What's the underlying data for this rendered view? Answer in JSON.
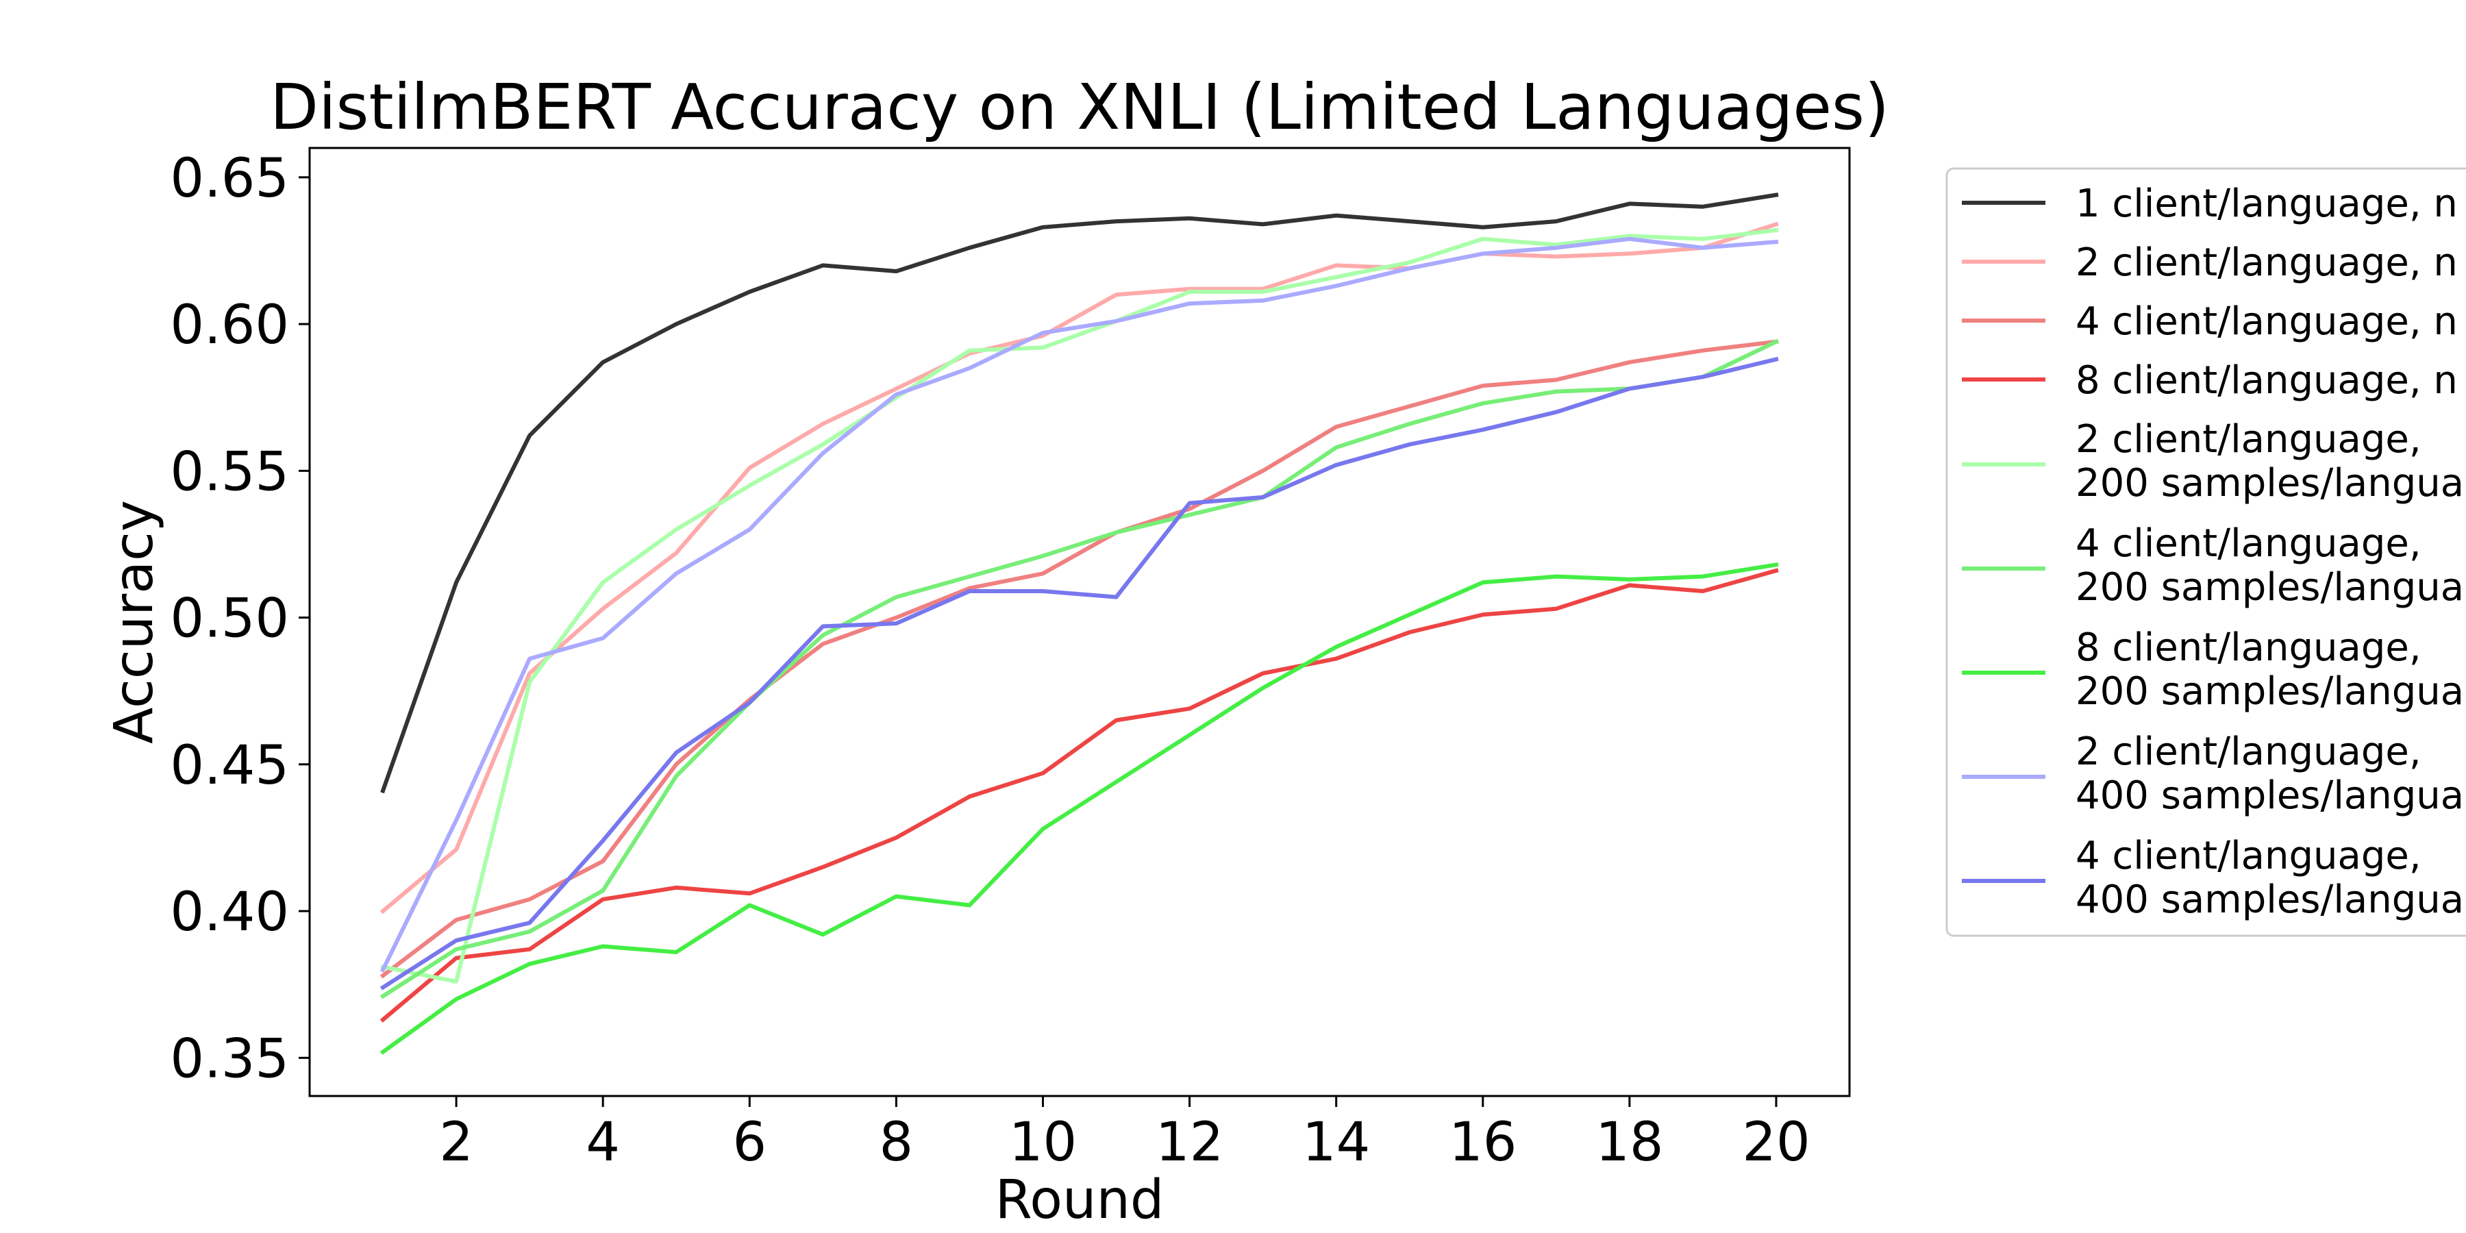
{
  "chart_data": {
    "type": "line",
    "title": "DistilmBERT Accuracy on XNLI (Limited Languages)",
    "xlabel": "Round",
    "ylabel": "Accuracy",
    "xlim": [
      0,
      21
    ],
    "ylim": [
      0.337,
      0.66
    ],
    "xticks": [
      2,
      4,
      6,
      8,
      10,
      12,
      14,
      16,
      18,
      20
    ],
    "xtick_labels": [
      "2",
      "4",
      "6",
      "8",
      "10",
      "12",
      "14",
      "16",
      "18",
      "20"
    ],
    "yticks": [
      0.35,
      0.4,
      0.45,
      0.5,
      0.55,
      0.6,
      0.65
    ],
    "ytick_labels": [
      "0.35",
      "0.40",
      "0.45",
      "0.50",
      "0.55",
      "0.60",
      "0.65"
    ],
    "grid": false,
    "legend_position": "outside right (clipped)",
    "x": [
      1,
      2,
      3,
      4,
      5,
      6,
      7,
      8,
      9,
      10,
      11,
      12,
      13,
      14,
      15,
      16,
      17,
      18,
      19,
      20
    ],
    "series": [
      {
        "name": "1 client/language, n",
        "label_lines": [
          "1 client/language, n"
        ],
        "color": "#333333",
        "values": [
          0.441,
          0.512,
          0.562,
          0.587,
          0.6,
          0.611,
          0.62,
          0.618,
          0.626,
          0.633,
          0.635,
          0.636,
          0.634,
          0.637,
          0.635,
          0.633,
          0.635,
          0.641,
          0.64,
          0.644
        ]
      },
      {
        "name": "2 client/language, n",
        "label_lines": [
          "2 client/language, n"
        ],
        "color": "#ffaaaa",
        "values": [
          0.4,
          0.421,
          0.481,
          0.503,
          0.522,
          0.551,
          0.566,
          0.578,
          0.59,
          0.596,
          0.61,
          0.612,
          0.612,
          0.62,
          0.619,
          0.624,
          0.623,
          0.624,
          0.626,
          0.634
        ]
      },
      {
        "name": "4 client/language, n",
        "label_lines": [
          "4 client/language, n"
        ],
        "color": "#f08080",
        "values": [
          0.378,
          0.397,
          0.404,
          0.417,
          0.45,
          0.472,
          0.491,
          0.5,
          0.51,
          0.515,
          0.529,
          0.537,
          0.55,
          0.565,
          0.572,
          0.579,
          0.581,
          0.587,
          0.591,
          0.594
        ]
      },
      {
        "name": "8 client/language, n",
        "label_lines": [
          "8 client/language, n"
        ],
        "color": "#ee4444",
        "values": [
          0.363,
          0.384,
          0.387,
          0.404,
          0.408,
          0.406,
          0.415,
          0.425,
          0.439,
          0.447,
          0.465,
          0.469,
          0.481,
          0.486,
          0.495,
          0.501,
          0.503,
          0.511,
          0.509,
          0.516
        ]
      },
      {
        "name": "2 client/language, 200 samples/langua",
        "label_lines": [
          "2 client/language,",
          "200 samples/langua"
        ],
        "color": "#aaffaa",
        "values": [
          0.381,
          0.376,
          0.478,
          0.512,
          0.53,
          0.545,
          0.559,
          0.575,
          0.591,
          0.592,
          0.601,
          0.611,
          0.611,
          0.616,
          0.621,
          0.629,
          0.627,
          0.63,
          0.629,
          0.632
        ]
      },
      {
        "name": "4 client/language, 200 samples/langua",
        "label_lines": [
          "4 client/language,",
          "200 samples/langua"
        ],
        "color": "#77ee77",
        "values": [
          0.371,
          0.387,
          0.393,
          0.407,
          0.446,
          0.471,
          0.494,
          0.507,
          0.514,
          0.521,
          0.529,
          0.535,
          0.541,
          0.558,
          0.566,
          0.573,
          0.577,
          0.578,
          0.582,
          0.594
        ]
      },
      {
        "name": "8 client/language, 200 samples/langua",
        "label_lines": [
          "8 client/language,",
          "200 samples/langua"
        ],
        "color": "#44ee44",
        "values": [
          0.352,
          0.37,
          0.382,
          0.388,
          0.386,
          0.402,
          0.392,
          0.405,
          0.402,
          0.428,
          0.444,
          0.46,
          0.476,
          0.49,
          0.501,
          0.512,
          0.514,
          0.513,
          0.514,
          0.518
        ]
      },
      {
        "name": "2 client/language, 400 samples/langua",
        "label_lines": [
          "2 client/language,",
          "400 samples/langua"
        ],
        "color": "#aaaaff",
        "values": [
          0.38,
          0.431,
          0.486,
          0.493,
          0.515,
          0.53,
          0.556,
          0.576,
          0.585,
          0.597,
          0.601,
          0.607,
          0.608,
          0.613,
          0.619,
          0.624,
          0.626,
          0.629,
          0.626,
          0.628
        ]
      },
      {
        "name": "4 client/language, 400 samples/langua",
        "label_lines": [
          "4 client/language,",
          "400 samples/langua"
        ],
        "color": "#7777ee",
        "values": [
          0.374,
          0.39,
          0.396,
          0.424,
          0.454,
          0.471,
          0.497,
          0.498,
          0.509,
          0.509,
          0.507,
          0.539,
          0.541,
          0.552,
          0.559,
          0.564,
          0.57,
          0.578,
          0.582,
          0.588
        ]
      }
    ]
  }
}
